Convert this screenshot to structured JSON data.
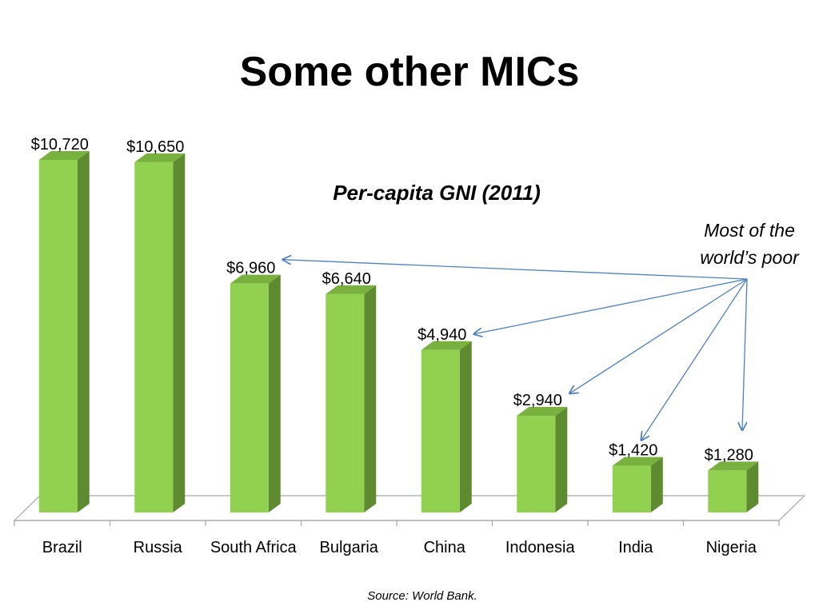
{
  "slide": {
    "title": "Some other MICs"
  },
  "chart_data": {
    "type": "bar",
    "title": "Per-capita GNI (2011)",
    "xlabel": "",
    "ylabel": "",
    "categories": [
      "Brazil",
      "Russia",
      "South Africa",
      "Bulgaria",
      "China",
      "Indonesia",
      "India",
      "Nigeria"
    ],
    "values": [
      10720,
      10650,
      6960,
      6640,
      4940,
      2940,
      1420,
      1280
    ],
    "value_labels": [
      "$10,720",
      "$10,650",
      "$6,960",
      "$6,640",
      "$4,940",
      "$2,940",
      "$1,420",
      "$1,280"
    ],
    "ylim": [
      0,
      11000
    ],
    "grid": false,
    "three_d": true,
    "annotation": {
      "lines": [
        "Most of the",
        "world’s poor"
      ],
      "arrow_targets": [
        "South Africa",
        "China",
        "Indonesia",
        "India",
        "Nigeria"
      ]
    },
    "source": "Source: World Bank."
  },
  "colors": {
    "bar_front": "#92d050",
    "bar_side": "#5e8a30",
    "bar_top": "#79b13f",
    "arrow": "#4f81bd",
    "floor_stroke": "#a6a6a6"
  }
}
